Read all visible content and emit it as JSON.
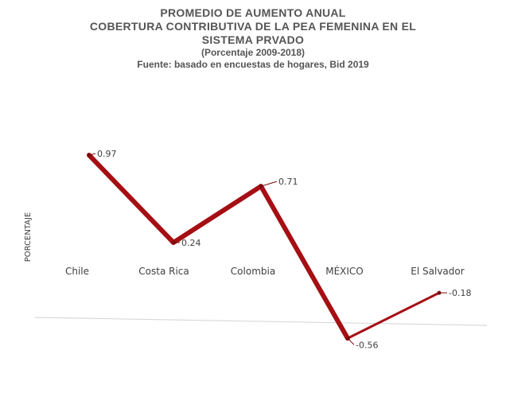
{
  "title": {
    "line1": "PROMEDIO DE AUMENTO ANUAL",
    "line2": "COBERTURA CONTRIBUTIVA DE LA PEA FEMENINA EN EL",
    "line3": "SISTEMA PRVADO",
    "line4": "(Porcentaje 2009-2018)",
    "line5": "Fuente: basado en encuestas de hogares, Bid 2019"
  },
  "chart_data": {
    "type": "line",
    "categories": [
      "Chile",
      "Costa Rica",
      "Colombia",
      "MÉXICO",
      "El Salvador"
    ],
    "values": [
      0.97,
      0.24,
      0.71,
      -0.56,
      -0.18
    ],
    "data_labels": [
      "0.97",
      "0.24",
      "0.71",
      "-0.56",
      "-0.18"
    ],
    "ylabel": "PORCENTAJE",
    "xlabel": "",
    "ylim": [
      -0.6,
      1.0
    ],
    "grid": false,
    "legend": "none",
    "line_color": "#A50F14"
  }
}
